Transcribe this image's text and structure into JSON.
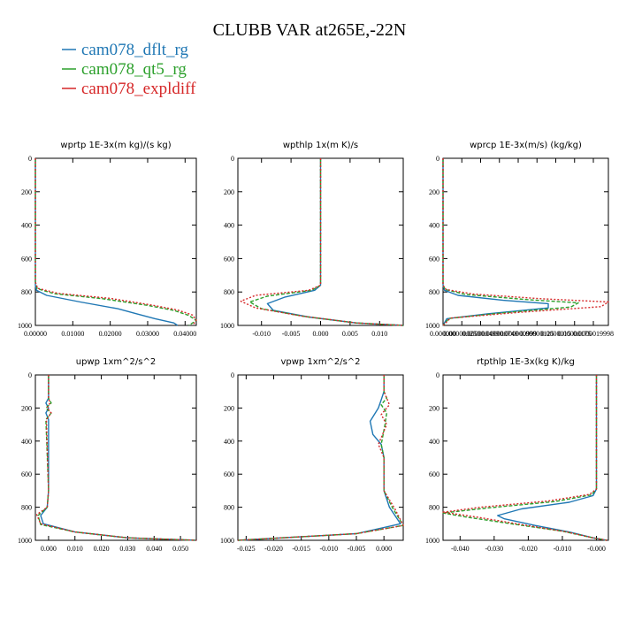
{
  "title": "CLUBB VAR at265E,-22N",
  "legend": [
    {
      "name": "cam078_dflt_rg",
      "color": "#1f77b4",
      "dash": "solid"
    },
    {
      "name": "cam078_qt5_rg",
      "color": "#2ca02c",
      "dash": "dashed"
    },
    {
      "name": "cam078_expldiff",
      "color": "#d62728",
      "dash": "dotted"
    }
  ],
  "chart_data": [
    {
      "type": "line",
      "title": "wprtp   1E-3x(m kg)/(s kg)",
      "xlim": [
        0,
        0.043
      ],
      "ylim": [
        1000,
        0
      ],
      "xticks": [
        0,
        0.01,
        0.02,
        0.03,
        0.04
      ],
      "xticklabels": [
        "0.00000",
        "0.01000",
        "0.02000",
        "0.03000",
        "0.04000"
      ],
      "yticks": [
        0,
        200,
        400,
        600,
        800,
        1000
      ],
      "series": [
        {
          "name": "cam078_dflt_rg",
          "x": [
            0,
            0,
            0.0003,
            0.003,
            0.012,
            0.022,
            0.027,
            0.032,
            0.037,
            0.038
          ],
          "y": [
            0,
            760,
            790,
            820,
            860,
            900,
            930,
            960,
            985,
            1000
          ]
        },
        {
          "name": "cam078_qt5_rg",
          "x": [
            0,
            0,
            0.0005,
            0.005,
            0.018,
            0.03,
            0.037,
            0.041,
            0.043,
            0.041
          ],
          "y": [
            0,
            740,
            780,
            810,
            840,
            880,
            910,
            940,
            970,
            1000
          ]
        },
        {
          "name": "cam078_expldiff",
          "x": [
            0,
            0,
            0.0006,
            0.006,
            0.02,
            0.031,
            0.038,
            0.042,
            0.043,
            0.042
          ],
          "y": [
            0,
            740,
            778,
            808,
            838,
            878,
            908,
            938,
            968,
            1000
          ]
        }
      ]
    },
    {
      "type": "line",
      "title": "wpthlp   1x(m K)/s",
      "xlim": [
        -0.014,
        0.014
      ],
      "ylim": [
        1000,
        0
      ],
      "xticks": [
        -0.01,
        -0.005,
        0,
        0.005,
        0.01
      ],
      "xticklabels": [
        "-0.010",
        "-0.005",
        "0.000",
        "0.005",
        "0.010"
      ],
      "yticks": [
        0,
        200,
        400,
        600,
        800,
        1000
      ],
      "series": [
        {
          "name": "cam078_dflt_rg",
          "x": [
            0,
            0,
            -0.001,
            -0.006,
            -0.009,
            -0.008,
            -0.002,
            0.006,
            0.014
          ],
          "y": [
            0,
            760,
            790,
            830,
            870,
            910,
            950,
            985,
            1000
          ]
        },
        {
          "name": "cam078_qt5_rg",
          "x": [
            0,
            0,
            -0.0015,
            -0.009,
            -0.012,
            -0.01,
            -0.003,
            0.006,
            0.014
          ],
          "y": [
            0,
            760,
            790,
            825,
            860,
            900,
            945,
            985,
            1000
          ]
        },
        {
          "name": "cam078_expldiff",
          "x": [
            0,
            0,
            -0.002,
            -0.011,
            -0.0135,
            -0.011,
            -0.003,
            0.006,
            0.014
          ],
          "y": [
            0,
            760,
            790,
            820,
            855,
            895,
            945,
            985,
            1000
          ]
        }
      ]
    },
    {
      "type": "line",
      "title": "wprcp   1E-3x(m/s) (kg/kg)",
      "xlim": [
        0,
        2.2e-06
      ],
      "ylim": [
        1000,
        0
      ],
      "xticks": [
        0,
        2.5e-07,
        5e-07,
        7.5e-07,
        1e-06,
        1.25e-06,
        1.5e-06,
        1.75e-06,
        2e-06
      ],
      "xticklabels": [
        "0.000000",
        "0.000000250",
        "0.000000499",
        "0.000000749",
        "0.000000999",
        "0.00000125",
        "0.0000015",
        "0.00000175",
        "0.0000019998"
      ],
      "yticks": [
        0,
        200,
        400,
        600,
        800,
        1000
      ],
      "series": [
        {
          "name": "cam078_dflt_rg",
          "x": [
            0,
            0,
            2e-08,
            2e-07,
            8e-07,
            1.4e-06,
            1.4e-06,
            6e-07,
            5e-08,
            0
          ],
          "y": [
            0,
            760,
            790,
            820,
            850,
            870,
            895,
            930,
            960,
            1000
          ]
        },
        {
          "name": "cam078_qt5_rg",
          "x": [
            0,
            0,
            3e-08,
            3e-07,
            1.1e-06,
            1.8e-06,
            1.7e-06,
            8e-07,
            8e-08,
            0
          ],
          "y": [
            0,
            760,
            785,
            815,
            845,
            865,
            890,
            925,
            958,
            1000
          ]
        },
        {
          "name": "cam078_expldiff",
          "x": [
            0,
            0,
            4e-08,
            4e-07,
            1.3e-06,
            2.2e-06,
            2.1e-06,
            1e-06,
            1e-07,
            0
          ],
          "y": [
            0,
            760,
            785,
            812,
            840,
            860,
            888,
            922,
            956,
            1000
          ]
        }
      ]
    },
    {
      "type": "line",
      "title": "upwp   1xm^2/s^2",
      "xlim": [
        -0.005,
        0.056
      ],
      "ylim": [
        1000,
        0
      ],
      "xticks": [
        0,
        0.01,
        0.02,
        0.03,
        0.04,
        0.05
      ],
      "xticklabels": [
        "0.000",
        "0.010",
        "0.020",
        "0.030",
        "0.040",
        "0.050"
      ],
      "yticks": [
        0,
        200,
        400,
        600,
        800,
        1000
      ],
      "series": [
        {
          "name": "cam078_dflt_rg",
          "x": [
            0,
            0,
            -0.001,
            0,
            -0.001,
            0,
            0,
            -0.0005,
            -0.003,
            -0.002,
            0.01,
            0.03,
            0.056
          ],
          "y": [
            0,
            140,
            170,
            200,
            230,
            270,
            700,
            800,
            850,
            900,
            950,
            985,
            1000
          ]
        },
        {
          "name": "cam078_qt5_rg",
          "x": [
            0,
            0,
            0.001,
            -0.001,
            0.001,
            -0.001,
            0,
            -0.0005,
            -0.004,
            -0.003,
            0.01,
            0.03,
            0.056
          ],
          "y": [
            0,
            140,
            170,
            200,
            230,
            270,
            700,
            800,
            850,
            905,
            950,
            985,
            1000
          ]
        },
        {
          "name": "cam078_expldiff",
          "x": [
            0,
            0,
            0.0005,
            -0.0005,
            0.001,
            -0.0008,
            0,
            -0.0005,
            -0.0045,
            -0.003,
            0.01,
            0.03,
            0.056
          ],
          "y": [
            0,
            140,
            170,
            200,
            230,
            270,
            700,
            800,
            845,
            900,
            950,
            985,
            1000
          ]
        }
      ]
    },
    {
      "type": "line",
      "title": "vpwp   1xm^2/s^2",
      "xlim": [
        -0.0265,
        0.0035
      ],
      "ylim": [
        1000,
        0
      ],
      "xticks": [
        -0.025,
        -0.02,
        -0.015,
        -0.01,
        -0.005,
        0
      ],
      "xticklabels": [
        "-0.025",
        "-0.020",
        "-0.015",
        "-0.010",
        "-0.005",
        "0.000"
      ],
      "yticks": [
        0,
        200,
        400,
        600,
        800,
        1000
      ],
      "series": [
        {
          "name": "cam078_dflt_rg",
          "x": [
            0,
            0,
            -0.0005,
            -0.001,
            -0.0025,
            -0.002,
            -0.0005,
            0,
            0,
            0.001,
            0.003,
            -0.005,
            -0.0265
          ],
          "y": [
            0,
            100,
            150,
            200,
            280,
            360,
            420,
            500,
            700,
            800,
            900,
            960,
            1000
          ]
        },
        {
          "name": "cam078_qt5_rg",
          "x": [
            0,
            0,
            0.0005,
            -0.0005,
            0.0005,
            0.0002,
            -0.0005,
            0,
            0,
            0.0015,
            0.0035,
            -0.005,
            -0.0265
          ],
          "y": [
            0,
            100,
            140,
            180,
            230,
            300,
            420,
            500,
            700,
            800,
            910,
            960,
            1000
          ]
        },
        {
          "name": "cam078_expldiff",
          "x": [
            0,
            0,
            0.0005,
            0.001,
            -0.0005,
            0.0005,
            -0.001,
            0,
            0,
            0.002,
            0.0035,
            -0.005,
            -0.0265
          ],
          "y": [
            0,
            100,
            140,
            180,
            240,
            300,
            420,
            500,
            700,
            810,
            910,
            960,
            1000
          ]
        }
      ]
    },
    {
      "type": "line",
      "title": "rtpthlp   1E-3x(kg K)/kg",
      "xlim": [
        -0.045,
        0.0035
      ],
      "ylim": [
        1000,
        0
      ],
      "xticks": [
        -0.04,
        -0.03,
        -0.02,
        -0.01,
        0
      ],
      "xticklabels": [
        "-0.040",
        "-0.030",
        "-0.020",
        "-0.010",
        "-0.000"
      ],
      "yticks": [
        0,
        200,
        400,
        600,
        800,
        1000
      ],
      "series": [
        {
          "name": "cam078_dflt_rg",
          "x": [
            0,
            0,
            -0.001,
            -0.008,
            -0.022,
            -0.029,
            -0.027,
            -0.018,
            -0.008,
            -0.001,
            0.003
          ],
          "y": [
            0,
            690,
            730,
            770,
            810,
            850,
            870,
            910,
            950,
            985,
            1000
          ]
        },
        {
          "name": "cam078_qt5_rg",
          "x": [
            0,
            0,
            -0.0015,
            -0.012,
            -0.032,
            -0.045,
            -0.038,
            -0.025,
            -0.01,
            -0.001,
            0.003
          ],
          "y": [
            0,
            690,
            725,
            765,
            805,
            835,
            860,
            900,
            945,
            985,
            1000
          ]
        },
        {
          "name": "cam078_expldiff",
          "x": [
            0,
            0,
            -0.002,
            -0.014,
            -0.034,
            -0.045,
            -0.035,
            -0.022,
            -0.009,
            -0.001,
            0.003
          ],
          "y": [
            0,
            690,
            722,
            762,
            800,
            830,
            860,
            905,
            948,
            985,
            1000
          ]
        }
      ]
    }
  ]
}
